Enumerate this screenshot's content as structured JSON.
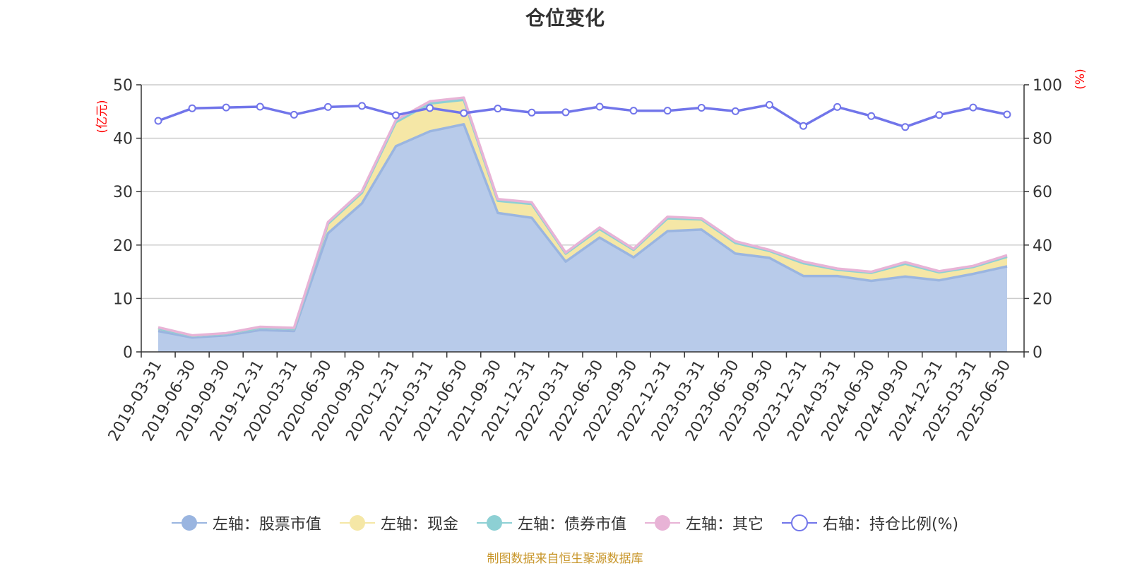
{
  "title": "仓位变化",
  "source": "制图数据来自恒生聚源数据库",
  "colors": {
    "stock": "#9ab5e0",
    "stock_fill": "#b8cbea",
    "cash": "#f5e7a6",
    "bond": "#8dd0d4",
    "other": "#e8b3d6",
    "ratio": "#7175ea",
    "axis_unit": "#ff0000",
    "grid": "#cccccc",
    "axis": "#333333"
  },
  "legend": [
    {
      "label": "左轴：股票市值",
      "color": "#9ab5e0",
      "marker": "filled"
    },
    {
      "label": "左轴：现金",
      "color": "#f5e7a6",
      "marker": "filled"
    },
    {
      "label": "左轴：债券市值",
      "color": "#8dd0d4",
      "marker": "filled"
    },
    {
      "label": "左轴：其它",
      "color": "#e8b3d6",
      "marker": "filled"
    },
    {
      "label": "右轴：持仓比例(%)",
      "color": "#7175ea",
      "marker": "hollow"
    }
  ],
  "chart_data": {
    "type": "area",
    "stacked": true,
    "categories": [
      "2019-03-31",
      "2019-06-30",
      "2019-09-30",
      "2019-12-31",
      "2020-03-31",
      "2020-06-30",
      "2020-09-30",
      "2020-12-31",
      "2021-03-31",
      "2021-06-30",
      "2021-09-30",
      "2021-12-31",
      "2022-03-31",
      "2022-06-30",
      "2022-09-30",
      "2022-12-31",
      "2023-03-31",
      "2023-06-30",
      "2023-09-30",
      "2023-12-31",
      "2024-03-31",
      "2024-06-30",
      "2024-09-30",
      "2024-12-31",
      "2025-03-31",
      "2025-06-30"
    ],
    "yaxis_left": {
      "label": "(亿元)",
      "ylim": [
        0,
        50
      ],
      "ticks": [
        0,
        10,
        20,
        30,
        40,
        50
      ]
    },
    "yaxis_right": {
      "label": "(%)",
      "ylim": [
        0,
        100
      ],
      "ticks": [
        0,
        20,
        40,
        60,
        80,
        100
      ]
    },
    "series": [
      {
        "name": "左轴：股票市值",
        "axis": "left",
        "values": [
          3.9,
          2.7,
          3.1,
          4.1,
          3.9,
          22.2,
          27.8,
          38.5,
          41.3,
          42.6,
          26.0,
          25.1,
          16.9,
          21.4,
          17.7,
          22.6,
          22.9,
          18.4,
          17.6,
          14.2,
          14.2,
          13.3,
          14.1,
          13.4,
          14.6,
          16.0
        ]
      },
      {
        "name": "左轴：现金",
        "axis": "left",
        "values": [
          0.5,
          0.3,
          0.3,
          0.4,
          0.4,
          1.8,
          2.0,
          4.5,
          5.2,
          4.6,
          2.3,
          2.6,
          1.5,
          1.6,
          1.4,
          2.4,
          1.9,
          2.0,
          1.3,
          2.4,
          1.2,
          1.5,
          2.4,
          1.5,
          1.3,
          1.8
        ]
      },
      {
        "name": "左轴：债券市值",
        "axis": "left",
        "values": [
          0,
          0,
          0,
          0,
          0,
          0,
          0,
          0,
          0,
          0,
          0,
          0,
          0,
          0,
          0,
          0,
          0,
          0,
          0,
          0,
          0,
          0,
          0,
          0,
          0,
          0
        ]
      },
      {
        "name": "左轴：其它",
        "axis": "left",
        "values": [
          0.2,
          0.1,
          0.1,
          0.2,
          0.2,
          0.3,
          0.3,
          0.4,
          0.4,
          0.4,
          0.3,
          0.3,
          0.2,
          0.3,
          0.2,
          0.3,
          0.2,
          0.3,
          0.2,
          0.3,
          0.2,
          0.2,
          0.3,
          0.2,
          0.2,
          0.3
        ]
      },
      {
        "name": "右轴：持仓比例(%)",
        "axis": "right",
        "type": "line",
        "values": [
          86.5,
          91.2,
          91.5,
          91.8,
          88.8,
          91.7,
          92.1,
          88.6,
          91.3,
          89.4,
          91.1,
          89.6,
          89.7,
          91.8,
          90.3,
          90.3,
          91.4,
          90.1,
          92.5,
          84.6,
          91.7,
          88.3,
          84.2,
          88.7,
          91.5,
          88.9
        ]
      }
    ],
    "grid": true,
    "legend_position": "bottom"
  }
}
